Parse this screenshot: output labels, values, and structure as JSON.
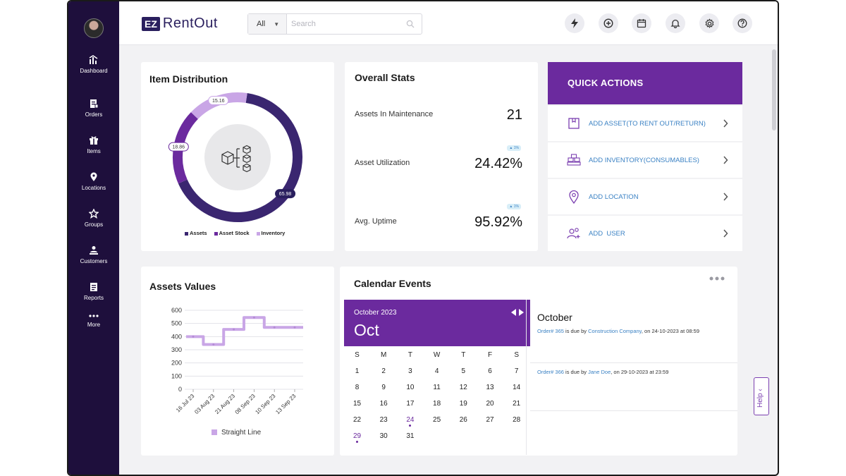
{
  "app": {
    "logo_mark": "EZ",
    "logo_name": "RentOut"
  },
  "search": {
    "scope": "All",
    "placeholder": "Search"
  },
  "top_icons": [
    "flash-icon",
    "add-circle-icon",
    "calendar-icon",
    "bell-icon",
    "gear-icon",
    "help-circle-icon"
  ],
  "sidebar": {
    "items": [
      {
        "label": "Dashboard",
        "icon": "dashboard-icon"
      },
      {
        "label": "Orders",
        "icon": "orders-icon"
      },
      {
        "label": "Items",
        "icon": "gift-icon"
      },
      {
        "label": "Locations",
        "icon": "location-pin-icon"
      },
      {
        "label": "Groups",
        "icon": "groups-icon"
      },
      {
        "label": "Customers",
        "icon": "customers-icon"
      },
      {
        "label": "Reports",
        "icon": "reports-icon"
      },
      {
        "label": "More",
        "icon": "more-dots-icon"
      }
    ]
  },
  "item_distribution": {
    "title": "Item Distribution",
    "chart_data": {
      "type": "pie",
      "labels": [
        "Assets",
        "Asset Stock",
        "Inventory"
      ],
      "values": [
        65.98,
        18.86,
        15.16
      ],
      "colors": [
        "#3a2670",
        "#6b2a9e",
        "#c9a6e6"
      ]
    },
    "legend": [
      "Assets",
      "Asset Stock",
      "Inventory"
    ]
  },
  "overall_stats": {
    "title": "Overall Stats",
    "rows": [
      {
        "label": "Assets In Maintenance",
        "value": "21",
        "badge": ""
      },
      {
        "label": "Asset Utilization",
        "value": "24.42%",
        "badge": "▲ 1%"
      },
      {
        "label": "Avg. Uptime",
        "value": "95.92%",
        "badge": "▲ 1%"
      }
    ]
  },
  "quick_actions": {
    "title": "QUICK ACTIONS",
    "items": [
      {
        "label": "ADD ASSET(TO RENT OUT/RETURN)",
        "icon": "asset-box-icon"
      },
      {
        "label": "ADD INVENTORY(CONSUMABLES)",
        "icon": "inventory-boxes-icon"
      },
      {
        "label": "ADD LOCATION",
        "icon": "location-pin-icon"
      },
      {
        "label": "ADD  USER",
        "icon": "add-user-icon"
      }
    ]
  },
  "assets_values": {
    "title": "Assets Values",
    "legend": "Straight Line",
    "chart_data": {
      "type": "line",
      "x": [
        "16 Jul 23",
        "03 Aug 23",
        "21 Aug 23",
        "08 Sep 23",
        "10 Sep 23",
        "13 Sep 23"
      ],
      "series": [
        {
          "name": "Straight Line",
          "values": [
            400,
            340,
            455,
            545,
            470,
            470
          ]
        }
      ],
      "ylim": [
        0,
        600
      ],
      "yticks": [
        0,
        100,
        200,
        300,
        400,
        500,
        600
      ],
      "color": "#c9a6e6"
    }
  },
  "calendar": {
    "title": "Calendar Events",
    "month_label": "October 2023",
    "month_short": "Oct",
    "weekdays": [
      "S",
      "M",
      "T",
      "W",
      "T",
      "F",
      "S"
    ],
    "weeks": [
      [
        "1",
        "2",
        "3",
        "4",
        "5",
        "6",
        "7"
      ],
      [
        "8",
        "9",
        "10",
        "11",
        "12",
        "13",
        "14"
      ],
      [
        "15",
        "16",
        "17",
        "18",
        "19",
        "20",
        "21"
      ],
      [
        "22",
        "23",
        "24",
        "25",
        "26",
        "27",
        "28"
      ],
      [
        "29",
        "30",
        "31",
        "",
        "",
        "",
        ""
      ]
    ],
    "events_heading": "October",
    "events": [
      {
        "order": "Order# 365",
        "mid": " is due by ",
        "who": "Construction Company",
        "tail": ", on 24-10-2023 at 08:59"
      },
      {
        "order": "Order# 366",
        "mid": " is due by ",
        "who": "Jane Doe",
        "tail": ", on 29-10-2023 at 23:59"
      }
    ]
  },
  "help": {
    "label": "Help"
  }
}
